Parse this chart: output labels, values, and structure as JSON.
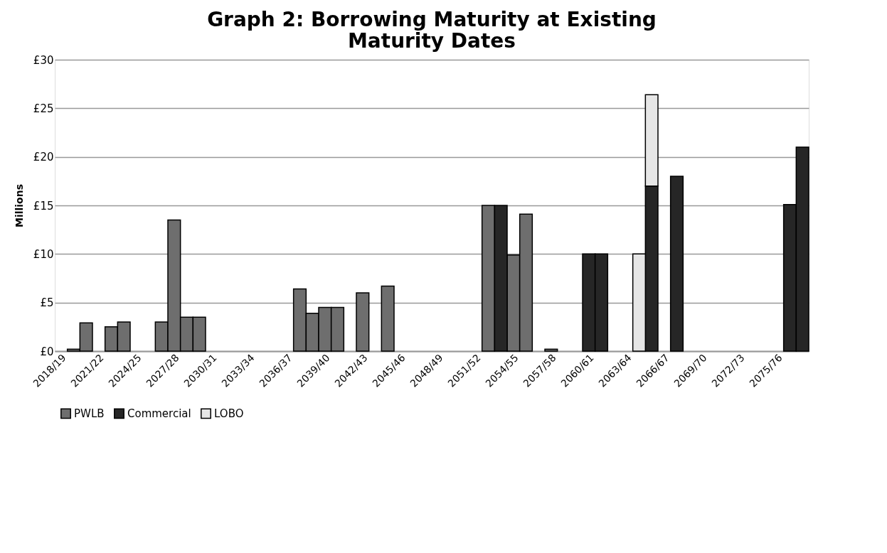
{
  "chart_data": {
    "type": "bar",
    "stacked": true,
    "title": "Graph 2:  Borrowing Maturity at Existing Maturity Dates",
    "ylabel": "Millions",
    "categories": [
      "2018/19",
      null,
      null,
      "2021/22",
      null,
      null,
      "2024/25",
      null,
      null,
      "2027/28",
      null,
      null,
      "2030/31",
      null,
      null,
      "2033/34",
      null,
      null,
      "2036/37",
      null,
      null,
      "2039/40",
      null,
      null,
      "2042/43",
      null,
      null,
      "2045/46",
      null,
      null,
      "2048/49",
      null,
      null,
      "2051/52",
      null,
      null,
      "2054/55",
      null,
      null,
      "2057/58",
      null,
      null,
      "2060/61",
      null,
      null,
      "2063/64",
      null,
      null,
      "2066/67",
      null,
      null,
      "2069/70",
      null,
      null,
      "2072/73",
      null,
      null,
      "2075/76",
      null,
      null
    ],
    "series": [
      {
        "name": "PWLB",
        "color": "#6e6e6e",
        "values": [
          null,
          0.2,
          2.9,
          null,
          2.5,
          3.0,
          null,
          null,
          3.0,
          13.5,
          3.5,
          3.5,
          null,
          null,
          null,
          null,
          null,
          null,
          null,
          6.4,
          3.9,
          4.5,
          4.5,
          null,
          6.0,
          null,
          6.7,
          null,
          null,
          null,
          null,
          null,
          null,
          null,
          15.0,
          null,
          9.9,
          14.1,
          null,
          0.2,
          null,
          null,
          null,
          null,
          null,
          null,
          null,
          null,
          null,
          null,
          null,
          null,
          null,
          null,
          null,
          null,
          null,
          null,
          null,
          null
        ]
      },
      {
        "name": "Commercial",
        "color": "#262626",
        "values": [
          null,
          null,
          null,
          null,
          null,
          null,
          null,
          null,
          null,
          null,
          null,
          null,
          null,
          null,
          null,
          null,
          null,
          null,
          null,
          null,
          null,
          null,
          null,
          null,
          null,
          null,
          null,
          null,
          null,
          null,
          null,
          null,
          null,
          null,
          null,
          15.0,
          null,
          null,
          null,
          null,
          null,
          null,
          10.0,
          10.0,
          null,
          null,
          null,
          17.0,
          null,
          18.0,
          null,
          null,
          null,
          null,
          null,
          null,
          null,
          null,
          15.1,
          21.0
        ]
      },
      {
        "name": "LOBO",
        "color": "#e6e6e6",
        "values": [
          null,
          null,
          null,
          null,
          null,
          null,
          null,
          null,
          null,
          null,
          null,
          null,
          null,
          null,
          null,
          null,
          null,
          null,
          null,
          null,
          null,
          null,
          null,
          null,
          null,
          null,
          null,
          null,
          null,
          null,
          null,
          null,
          null,
          null,
          null,
          null,
          null,
          null,
          null,
          null,
          null,
          null,
          null,
          null,
          null,
          null,
          10.0,
          9.4,
          null,
          null,
          null,
          null,
          null,
          null,
          null,
          null,
          null,
          null,
          null,
          null
        ]
      }
    ],
    "ylim": [
      0,
      30
    ],
    "yticks": [
      {
        "value": 0,
        "label": "£0"
      },
      {
        "value": 5,
        "label": "£5"
      },
      {
        "value": 10,
        "label": "£10"
      },
      {
        "value": 15,
        "label": "£15"
      },
      {
        "value": 20,
        "label": "£20"
      },
      {
        "value": 25,
        "label": "£25"
      },
      {
        "value": 30,
        "label": "£30"
      }
    ],
    "grid": "y",
    "legend": "bottom"
  }
}
